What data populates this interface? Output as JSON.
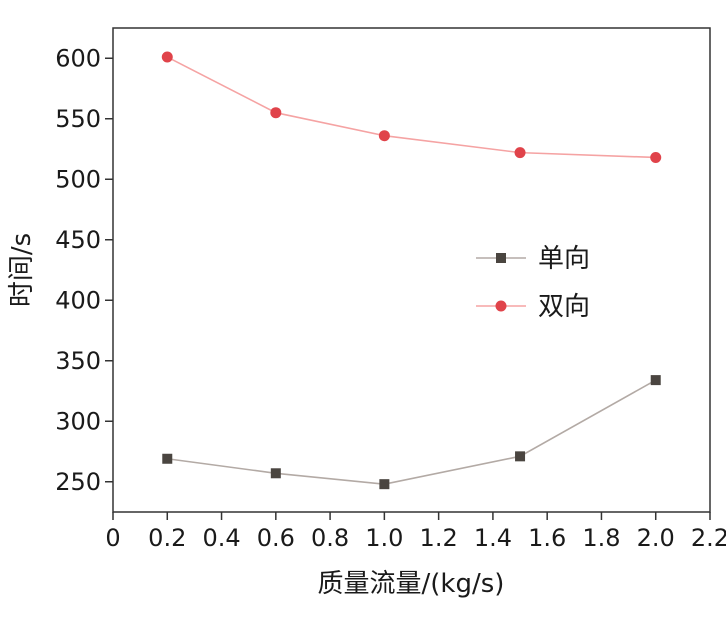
{
  "chart_data": {
    "type": "line",
    "title": "",
    "xlabel": "质量流量/(kg/s)",
    "ylabel": "时间/s",
    "xlim": [
      0,
      2.2
    ],
    "ylim": [
      225,
      625
    ],
    "x_ticks": [
      "0",
      "0.2",
      "0.4",
      "0.6",
      "0.8",
      "1.0",
      "1.2",
      "1.4",
      "1.6",
      "1.8",
      "2.0",
      "2.2"
    ],
    "y_ticks": [
      "250",
      "300",
      "350",
      "400",
      "450",
      "500",
      "550",
      "600"
    ],
    "grid": false,
    "legend_position": "right-middle",
    "series": [
      {
        "name": "单向",
        "marker": "square",
        "color": "#4a4540",
        "line_color": "#b3aaa5",
        "x": [
          0.2,
          0.6,
          1.0,
          1.5,
          2.0
        ],
        "values": [
          269,
          257,
          248,
          271,
          334
        ]
      },
      {
        "name": "双向",
        "marker": "circle",
        "color": "#e0434a",
        "line_color": "#f5a3a3",
        "x": [
          0.2,
          0.6,
          1.0,
          1.5,
          2.0
        ],
        "values": [
          601,
          555,
          536,
          522,
          518
        ]
      }
    ]
  }
}
